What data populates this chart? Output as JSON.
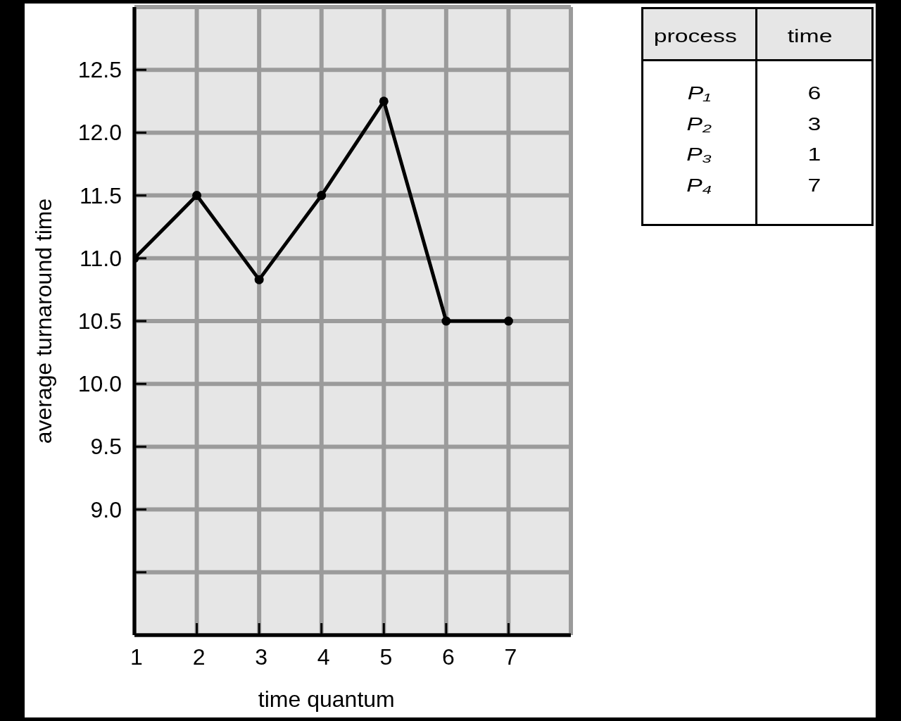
{
  "chart_data": [
    {
      "type": "line",
      "xlabel": "time quantum",
      "ylabel": "average turnaround time",
      "x": [
        1,
        2,
        3,
        4,
        5,
        6,
        7
      ],
      "values": [
        11,
        11.5,
        10.83,
        11.5,
        12.25,
        10.5,
        10.5
      ],
      "color": "#000000",
      "xlim": [
        1,
        8
      ],
      "ylim": [
        8,
        13
      ],
      "xticks": [
        1,
        2,
        3,
        4,
        5,
        6,
        7
      ],
      "yticks": [
        {
          "value": 8.5,
          "label": null
        },
        {
          "value": 9,
          "label": "9.0"
        },
        9.5,
        {
          "value": 10,
          "label": "10.0"
        },
        10.5,
        {
          "value": 11,
          "label": "11.0"
        },
        11.5,
        {
          "value": 12,
          "label": "12.0"
        },
        12.5
      ],
      "grid": true,
      "marker": "circle",
      "line_style": "solid"
    },
    {
      "type": "other",
      "xlabel": "process",
      "ylabel": "time",
      "categories": [
        "P₁",
        "P₂",
        "P₃",
        "P₄"
      ],
      "values": [
        6,
        3,
        1,
        7
      ],
      "data_labels": true
    }
  ]
}
